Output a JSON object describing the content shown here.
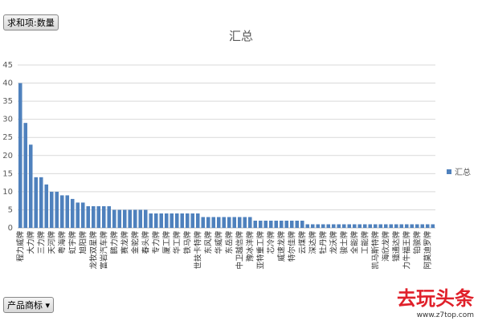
{
  "pivot_button": "求和项:数量",
  "filter_button": "产品商标",
  "watermark": {
    "brand": "去玩头条",
    "url": "www.z7top.com"
  },
  "chart_data": {
    "type": "bar",
    "title": "汇总",
    "legend": "right",
    "grid": true,
    "ylim": [
      0,
      45
    ],
    "yticks": [
      0,
      5,
      10,
      15,
      20,
      25,
      30,
      35,
      40,
      45
    ],
    "categories": [
      "程力威牌",
      null,
      "大力牌",
      null,
      "三力牌",
      null,
      "天河牌",
      null,
      "粤海牌",
      null,
      "虹宇牌",
      null,
      "旭阳牌",
      null,
      "龙牧双星牌",
      null,
      "富岩汽车牌",
      null,
      "鹏力牌",
      null,
      "赛龙牌",
      null,
      "金驼牌",
      null,
      "春头牌",
      null,
      "专力牌",
      null,
      "厦工牌",
      null,
      "华工牌",
      null,
      "铁马牌",
      null,
      "世技卡特牌",
      null,
      "东风牌",
      null,
      "华威牌",
      null,
      "东岳牌",
      null,
      "中卫越信牌",
      null,
      "豫冰洋牌",
      null,
      "亚特重工牌",
      null,
      "芯冷牌",
      null,
      "威速龙牌",
      null,
      "特尔佳牌",
      null,
      "云煤牌",
      null,
      "深达牌",
      null,
      "牡丹牌",
      null,
      "龙沃牌",
      null,
      "骏士牌",
      null,
      "全能牌",
      null,
      "工能牌",
      null,
      "凯马斯特牌",
      null,
      "海欣龙牌",
      null,
      "镭通达牌",
      null,
      "力牛福王牌",
      null,
      "铂骏牌",
      null,
      "阿莫迪罗牌",
      null
    ],
    "series": [
      {
        "name": "汇总",
        "color": "#4f81bd",
        "values": [
          40,
          29,
          23,
          14,
          14,
          12,
          10,
          10,
          9,
          9,
          8,
          7,
          7,
          6,
          6,
          6,
          6,
          6,
          5,
          5,
          5,
          5,
          5,
          5,
          5,
          4,
          4,
          4,
          4,
          4,
          4,
          4,
          4,
          4,
          4,
          3,
          3,
          3,
          3,
          3,
          3,
          3,
          3,
          3,
          3,
          2,
          2,
          2,
          2,
          2,
          2,
          2,
          2,
          2,
          2,
          1,
          1,
          1,
          1,
          1,
          1,
          1,
          1,
          1,
          1,
          1,
          1,
          1,
          1,
          1,
          1,
          1,
          1,
          1,
          1,
          1,
          1,
          1,
          1,
          1
        ]
      }
    ]
  }
}
